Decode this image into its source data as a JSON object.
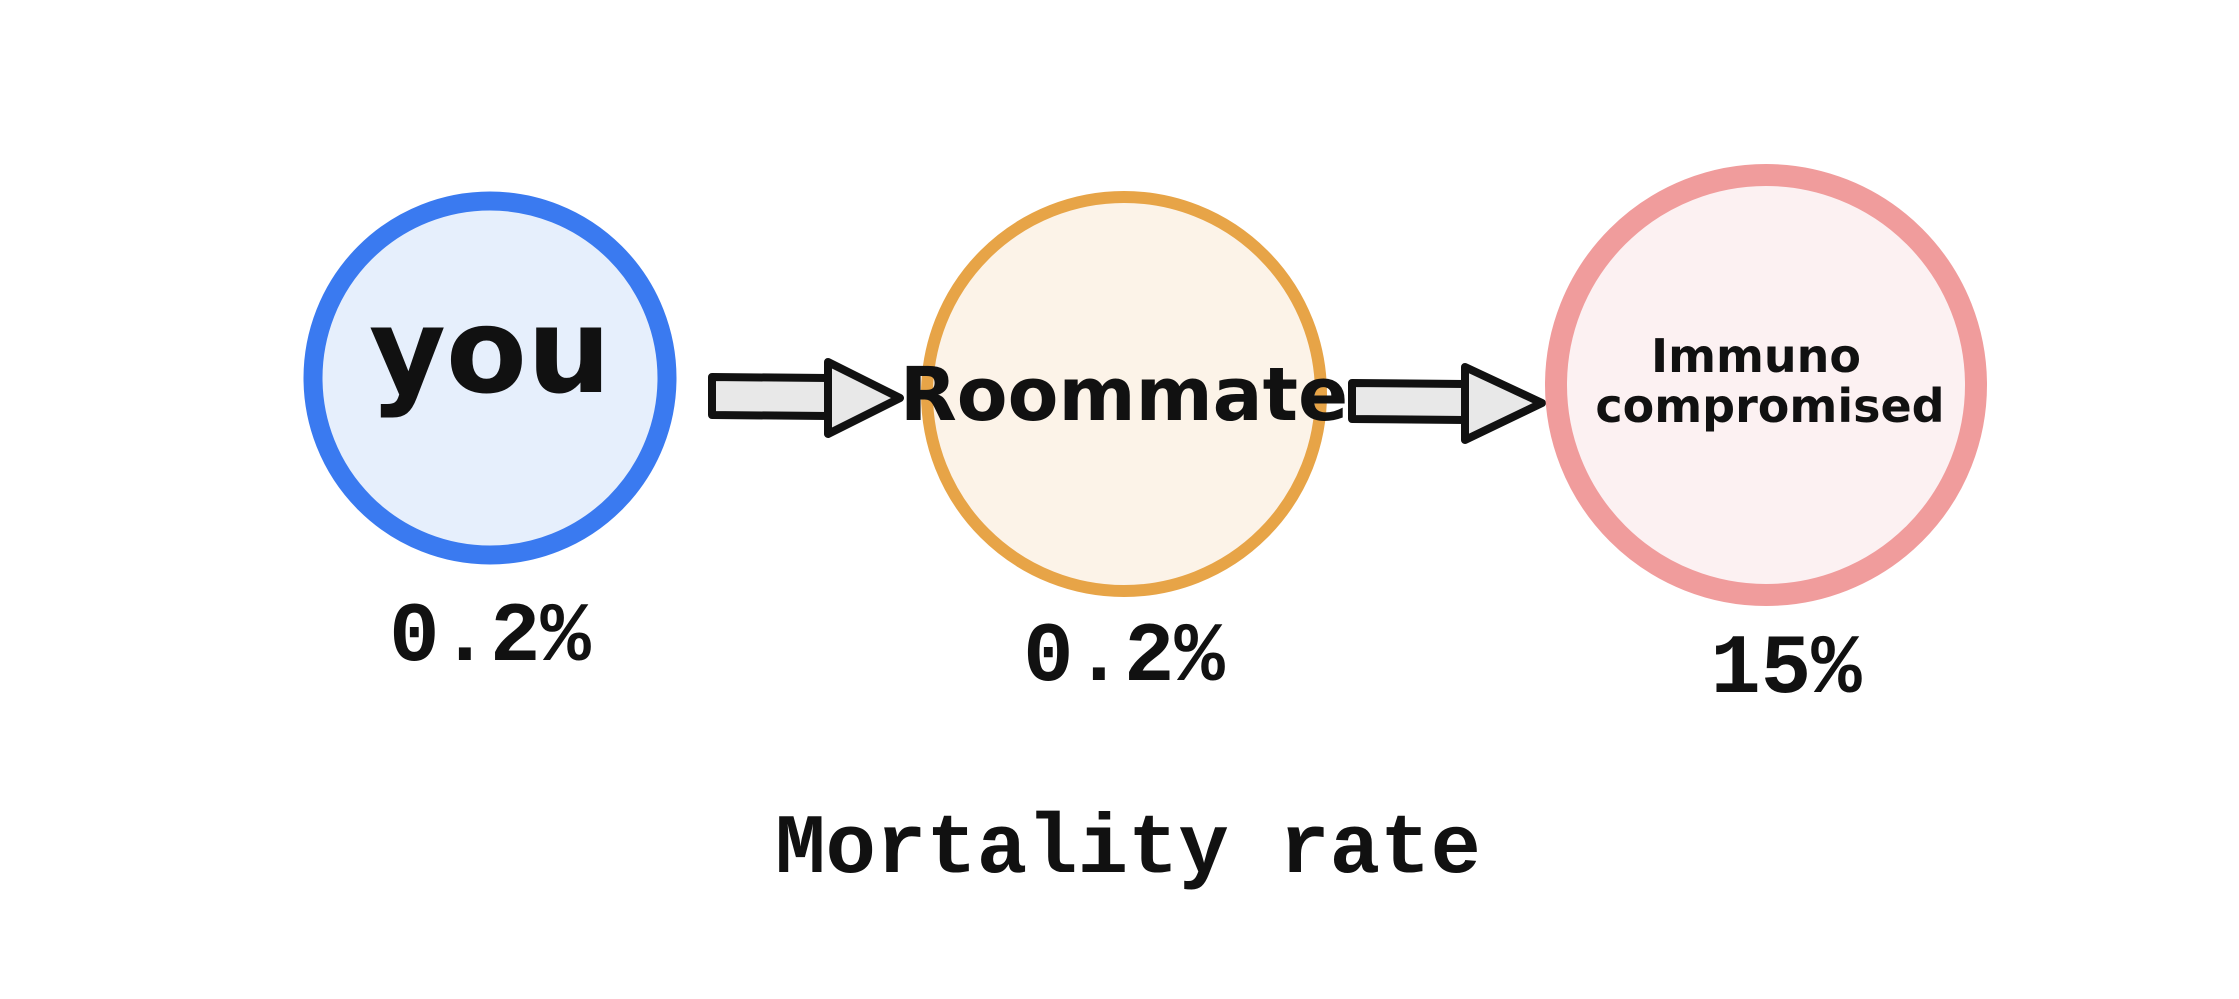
{
  "diagram": {
    "nodes": [
      {
        "id": "you",
        "label": "you",
        "value": "0.2%",
        "stroke": "#3A7AF0",
        "fill": "#E6EFFC"
      },
      {
        "id": "roommate",
        "label": "Roommate",
        "value": "0.2%",
        "stroke": "#E7A447",
        "fill": "#FCF3E8"
      },
      {
        "id": "immunocompromised",
        "label_line1": "Immuno",
        "label_line2": "compromised",
        "value": "15%",
        "stroke": "#F09C9C",
        "fill": "#FCF1F2"
      }
    ],
    "arrow_fill": "#E8E8E8",
    "caption": "Mortality rate"
  }
}
